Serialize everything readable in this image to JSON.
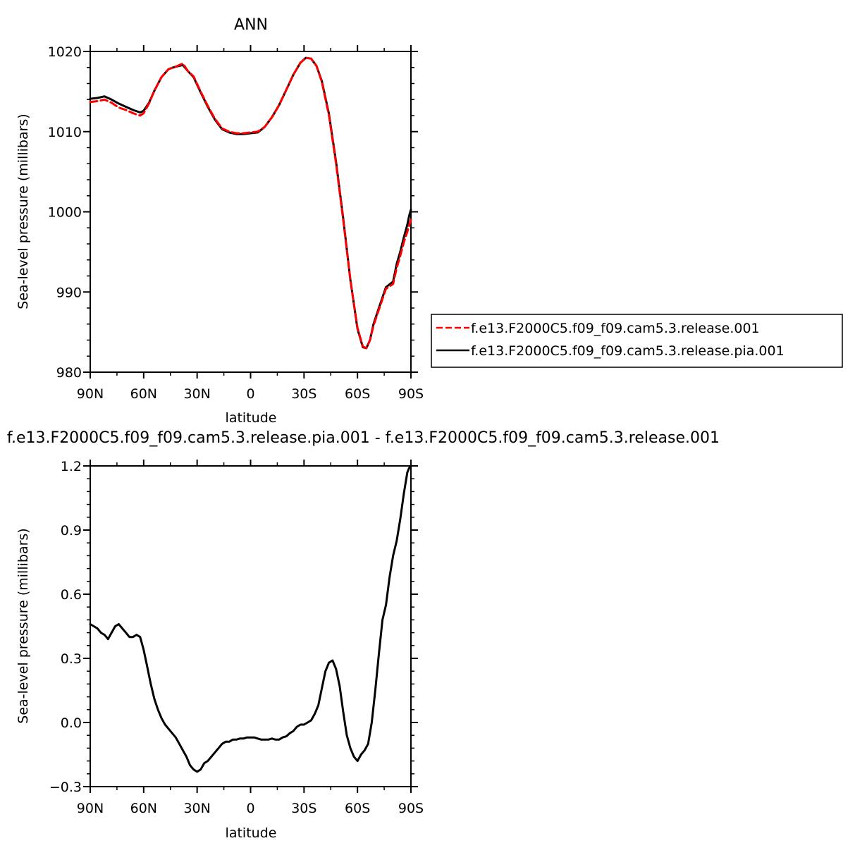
{
  "chart_data": [
    {
      "type": "line",
      "title": "ANN",
      "xlabel": "latitude",
      "ylabel": "Sea-level pressure (millibars)",
      "xlim": [
        90,
        -90
      ],
      "ylim": [
        980,
        1020
      ],
      "xticks": [
        90,
        60,
        30,
        0,
        -30,
        -60,
        -90
      ],
      "xticklabels": [
        "90N",
        "60N",
        "30N",
        "0",
        "30S",
        "60S",
        "90S"
      ],
      "yticks": [
        980,
        990,
        1000,
        1010,
        1020
      ],
      "yticklabels": [
        "980",
        "990",
        "1000",
        "1010",
        "1020"
      ],
      "legend": "right",
      "series": [
        {
          "name": "f.e13.F2000C5.f09_f09.cam5.3.release.001",
          "color": "#ff0000",
          "dash": "dashed",
          "x": [
            90,
            86,
            82,
            78,
            74,
            70,
            66,
            62,
            60,
            57,
            54,
            50,
            46,
            42,
            38,
            35,
            32,
            28,
            24,
            20,
            16,
            12,
            8,
            4,
            0,
            -4,
            -8,
            -12,
            -16,
            -20,
            -24,
            -28,
            -31,
            -34,
            -37,
            -40,
            -44,
            -48,
            -52,
            -56,
            -60,
            -63,
            -65,
            -67,
            -69,
            -72,
            -76,
            -80,
            -82,
            -84,
            -86,
            -88,
            -89,
            -90
          ],
          "y": [
            1013.7,
            1013.8,
            1014.0,
            1013.6,
            1013.0,
            1012.7,
            1012.3,
            1012.0,
            1012.3,
            1013.5,
            1015.1,
            1016.8,
            1017.8,
            1018.1,
            1018.5,
            1017.5,
            1016.9,
            1015.0,
            1013.2,
            1011.6,
            1010.4,
            1010.0,
            1009.8,
            1009.8,
            1009.9,
            1010.0,
            1010.6,
            1011.8,
            1013.3,
            1015.2,
            1017.1,
            1018.6,
            1019.2,
            1019.1,
            1018.2,
            1016.2,
            1012.0,
            1006.0,
            999.0,
            991.5,
            985.5,
            983.2,
            983.0,
            984.0,
            985.8,
            987.8,
            990.4,
            991.0,
            993.0,
            994.5,
            996.2,
            997.5,
            998.3,
            999.0
          ]
        },
        {
          "name": "f.e13.F2000C5.f09_f09.cam5.3.release.pia.001",
          "color": "#000000",
          "dash": "solid",
          "x": [
            90,
            86,
            82,
            78,
            74,
            70,
            66,
            62,
            60,
            57,
            54,
            50,
            46,
            42,
            38,
            35,
            32,
            28,
            24,
            20,
            16,
            12,
            8,
            4,
            0,
            -4,
            -8,
            -12,
            -16,
            -20,
            -24,
            -28,
            -31,
            -34,
            -37,
            -40,
            -44,
            -48,
            -52,
            -56,
            -60,
            -63,
            -65,
            -67,
            -69,
            -72,
            -76,
            -80,
            -82,
            -84,
            -86,
            -88,
            -89,
            -90
          ],
          "y": [
            1014.1,
            1014.2,
            1014.4,
            1014.0,
            1013.5,
            1013.1,
            1012.7,
            1012.4,
            1012.6,
            1013.6,
            1015.1,
            1016.8,
            1017.8,
            1018.1,
            1018.3,
            1017.5,
            1016.8,
            1014.9,
            1013.1,
            1011.5,
            1010.3,
            1009.9,
            1009.7,
            1009.7,
            1009.8,
            1009.9,
            1010.6,
            1011.8,
            1013.3,
            1015.2,
            1017.1,
            1018.6,
            1019.2,
            1019.1,
            1018.2,
            1016.3,
            1012.2,
            1006.2,
            999.2,
            991.5,
            985.4,
            983.1,
            983.0,
            984.0,
            986.0,
            988.0,
            990.6,
            991.3,
            993.5,
            995.0,
            996.8,
            998.4,
            999.5,
            1000.3
          ]
        }
      ]
    },
    {
      "type": "line",
      "title": "f.e13.F2000C5.f09_f09.cam5.3.release.pia.001 - f.e13.F2000C5.f09_f09.cam5.3.release.001",
      "xlabel": "latitude",
      "ylabel": "Sea-level pressure (millibars)",
      "xlim": [
        90,
        -90
      ],
      "ylim": [
        -0.3,
        1.2
      ],
      "xticks": [
        90,
        60,
        30,
        0,
        -30,
        -60,
        -90
      ],
      "xticklabels": [
        "90N",
        "60N",
        "30N",
        "0",
        "30S",
        "60S",
        "90S"
      ],
      "yticks": [
        -0.3,
        0.0,
        0.3,
        0.6,
        0.9,
        1.2
      ],
      "yticklabels": [
        "−0.3",
        "0.0",
        "0.3",
        "0.6",
        "0.9",
        "1.2"
      ],
      "series": [
        {
          "color": "#000000",
          "dash": "solid",
          "x": [
            90,
            88,
            86,
            84,
            82,
            80,
            78,
            76,
            74,
            72,
            70,
            68,
            66,
            64,
            62,
            60,
            58,
            56,
            54,
            52,
            50,
            48,
            46,
            44,
            42,
            40,
            38,
            36,
            34,
            32,
            30,
            28,
            26,
            24,
            22,
            20,
            18,
            16,
            14,
            12,
            10,
            8,
            6,
            4,
            2,
            0,
            -2,
            -4,
            -6,
            -8,
            -10,
            -12,
            -14,
            -16,
            -18,
            -20,
            -22,
            -24,
            -26,
            -28,
            -30,
            -32,
            -34,
            -36,
            -38,
            -40,
            -42,
            -44,
            -46,
            -48,
            -50,
            -52,
            -54,
            -56,
            -58,
            -60,
            -62,
            -64,
            -66,
            -68,
            -70,
            -72,
            -74,
            -76,
            -78,
            -80,
            -82,
            -84,
            -86,
            -88,
            -89,
            -90
          ],
          "y": [
            0.46,
            0.45,
            0.44,
            0.42,
            0.41,
            0.39,
            0.42,
            0.45,
            0.46,
            0.44,
            0.42,
            0.4,
            0.4,
            0.41,
            0.4,
            0.34,
            0.26,
            0.18,
            0.11,
            0.06,
            0.02,
            -0.01,
            -0.03,
            -0.05,
            -0.07,
            -0.1,
            -0.13,
            -0.16,
            -0.2,
            -0.22,
            -0.23,
            -0.22,
            -0.19,
            -0.18,
            -0.16,
            -0.14,
            -0.12,
            -0.1,
            -0.09,
            -0.09,
            -0.08,
            -0.08,
            -0.075,
            -0.075,
            -0.07,
            -0.07,
            -0.07,
            -0.075,
            -0.08,
            -0.08,
            -0.08,
            -0.075,
            -0.08,
            -0.08,
            -0.07,
            -0.065,
            -0.05,
            -0.04,
            -0.02,
            -0.01,
            -0.01,
            0.0,
            0.01,
            0.04,
            0.08,
            0.16,
            0.24,
            0.28,
            0.29,
            0.25,
            0.17,
            0.05,
            -0.06,
            -0.12,
            -0.16,
            -0.18,
            -0.15,
            -0.13,
            -0.1,
            0.0,
            0.15,
            0.32,
            0.48,
            0.55,
            0.68,
            0.78,
            0.85,
            0.95,
            1.07,
            1.17,
            1.19,
            1.2
          ]
        }
      ]
    }
  ]
}
